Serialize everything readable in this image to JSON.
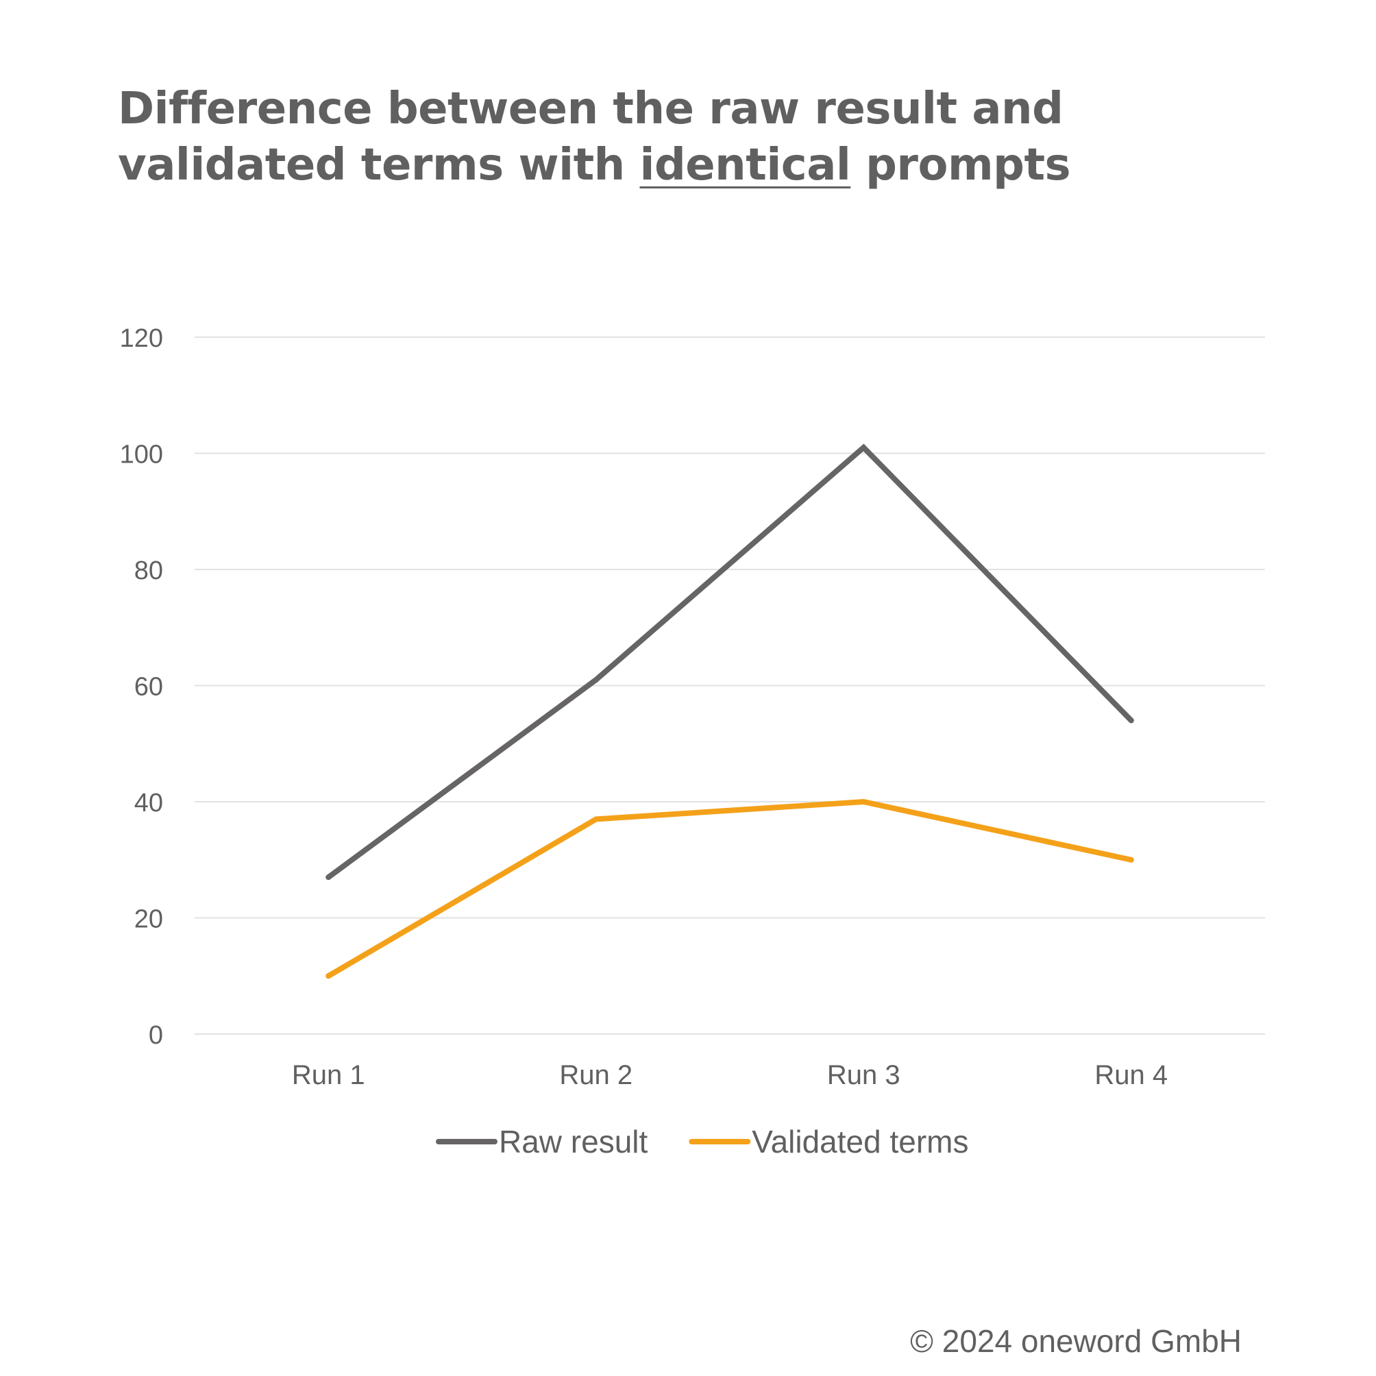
{
  "title": {
    "part1": "Difference between the raw result and validated terms with ",
    "emphasis": "identical",
    "part2": " prompts"
  },
  "chart_data": {
    "type": "line",
    "categories": [
      "Run 1",
      "Run 2",
      "Run 3",
      "Run 4"
    ],
    "series": [
      {
        "name": "Raw result",
        "values": [
          27,
          61,
          101,
          54
        ],
        "color": "#666464"
      },
      {
        "name": "Validated terms",
        "values": [
          10,
          37,
          40,
          30
        ],
        "color": "#F4A11A"
      }
    ],
    "yticks": [
      "0",
      "20",
      "40",
      "60",
      "80",
      "100",
      "120"
    ],
    "ylim": [
      0,
      120
    ],
    "grid": true,
    "legend_position": "bottom-center"
  },
  "footer": {
    "copyright": "© 2024 oneword GmbH"
  }
}
